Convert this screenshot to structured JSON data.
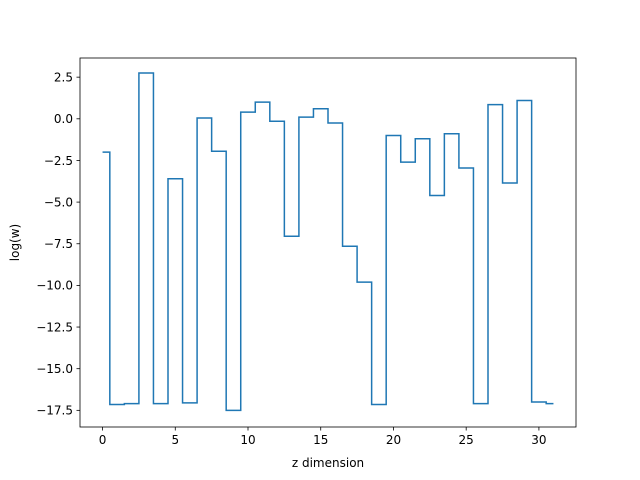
{
  "chart_data": {
    "type": "line",
    "drawstyle": "steps-mid",
    "title": "",
    "xlabel": "z dimension",
    "ylabel": "log(w)",
    "xlim": [
      -1.55,
      32.55
    ],
    "ylim": [
      -18.5,
      3.65
    ],
    "xticks": [
      0,
      5,
      10,
      15,
      20,
      25,
      30
    ],
    "xtick_labels": [
      "0",
      "5",
      "10",
      "15",
      "20",
      "25",
      "30"
    ],
    "yticks": [
      2.5,
      0.0,
      -2.5,
      -5.0,
      -7.5,
      -10.0,
      -12.5,
      -15.0,
      -17.5
    ],
    "ytick_labels": [
      "2.5",
      "0.0",
      "−2.5",
      "−5.0",
      "−7.5",
      "−10.0",
      "−12.5",
      "−15.0",
      "−17.5"
    ],
    "grid": false,
    "line_color": "#1f77b4",
    "x": [
      0,
      1,
      2,
      3,
      4,
      5,
      6,
      7,
      8,
      9,
      10,
      11,
      12,
      13,
      14,
      15,
      16,
      17,
      18,
      19,
      20,
      21,
      22,
      23,
      24,
      25,
      26,
      27,
      28,
      29,
      30,
      31
    ],
    "values": [
      -2.0,
      -17.15,
      -17.1,
      2.75,
      -17.1,
      -3.6,
      -17.05,
      0.05,
      -1.95,
      -17.5,
      0.4,
      1.0,
      -0.15,
      -7.05,
      0.1,
      0.6,
      -0.25,
      -7.65,
      -9.8,
      -17.15,
      -1.0,
      -2.6,
      -1.2,
      -4.6,
      -0.9,
      -2.95,
      -17.1,
      0.85,
      -3.85,
      1.1,
      -17.0,
      -17.1
    ]
  }
}
